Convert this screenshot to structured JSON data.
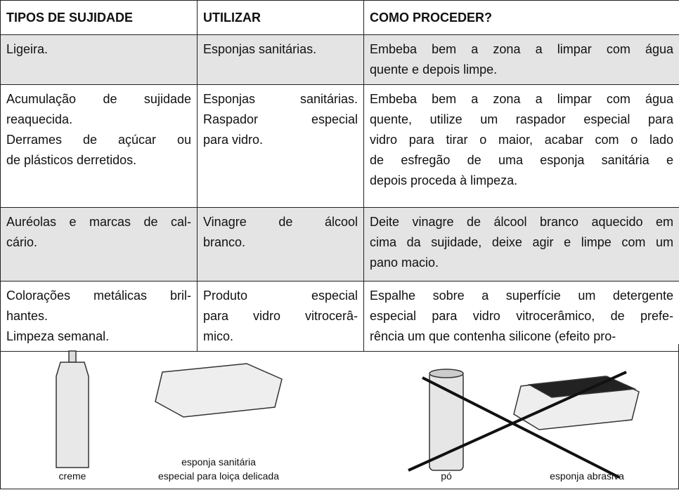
{
  "table": {
    "header": [
      "TIPOS DE SUJIDADE",
      "UTILIZAR",
      "COMO PROCEDER?"
    ],
    "rows": [
      [
        [
          [
            "Ligeira."
          ]
        ],
        [
          [
            "Esponjas sanitárias."
          ]
        ],
        [
          [
            "Embeba bem a zona a limpar com água",
            "quente e depois limpe."
          ]
        ]
      ],
      [
        [
          [
            "Acumulação de sujidade",
            "reaquecida."
          ],
          [
            "Derrames de açúcar ou",
            "de plásticos derretidos."
          ]
        ],
        [
          [
            "Esponjas sanitárias.",
            "Raspador especial",
            "para vidro."
          ]
        ],
        [
          [
            "Embeba bem a zona a limpar com água",
            "quente, utilize um raspador especial para",
            "vidro para tirar o maior, acabar com o lado",
            "de esfregão de uma esponja sanitária e",
            "depois proceda à limpeza."
          ]
        ]
      ],
      [
        [
          [
            "Auréolas e marcas de cal-",
            "cário."
          ]
        ],
        [
          [
            "Vinagre de álcool",
            "branco."
          ]
        ],
        [
          [
            "Deite vinagre de álcool branco aquecido em",
            "cima da sujidade, deixe agir e limpe com um",
            "pano macio."
          ]
        ]
      ],
      [
        [
          [
            "Colorações metálicas bril-",
            "hantes."
          ],
          [
            "Limpeza semanal."
          ]
        ],
        [
          [
            "Produto especial",
            "para vidro vitrocerâ-",
            "mico."
          ]
        ],
        [
          [
            "Espalhe sobre a superfície um detergente",
            "especial para vidro vitrocerâmico, de prefe-",
            "rência um que contenha silicone (efeito pro-"
          ]
        ]
      ]
    ]
  },
  "figures": [
    [
      "creme"
    ],
    [
      "esponja sanitária",
      "especial para loiça delicada"
    ],
    [
      "pó"
    ],
    [
      "esponja abrasiva"
    ]
  ]
}
